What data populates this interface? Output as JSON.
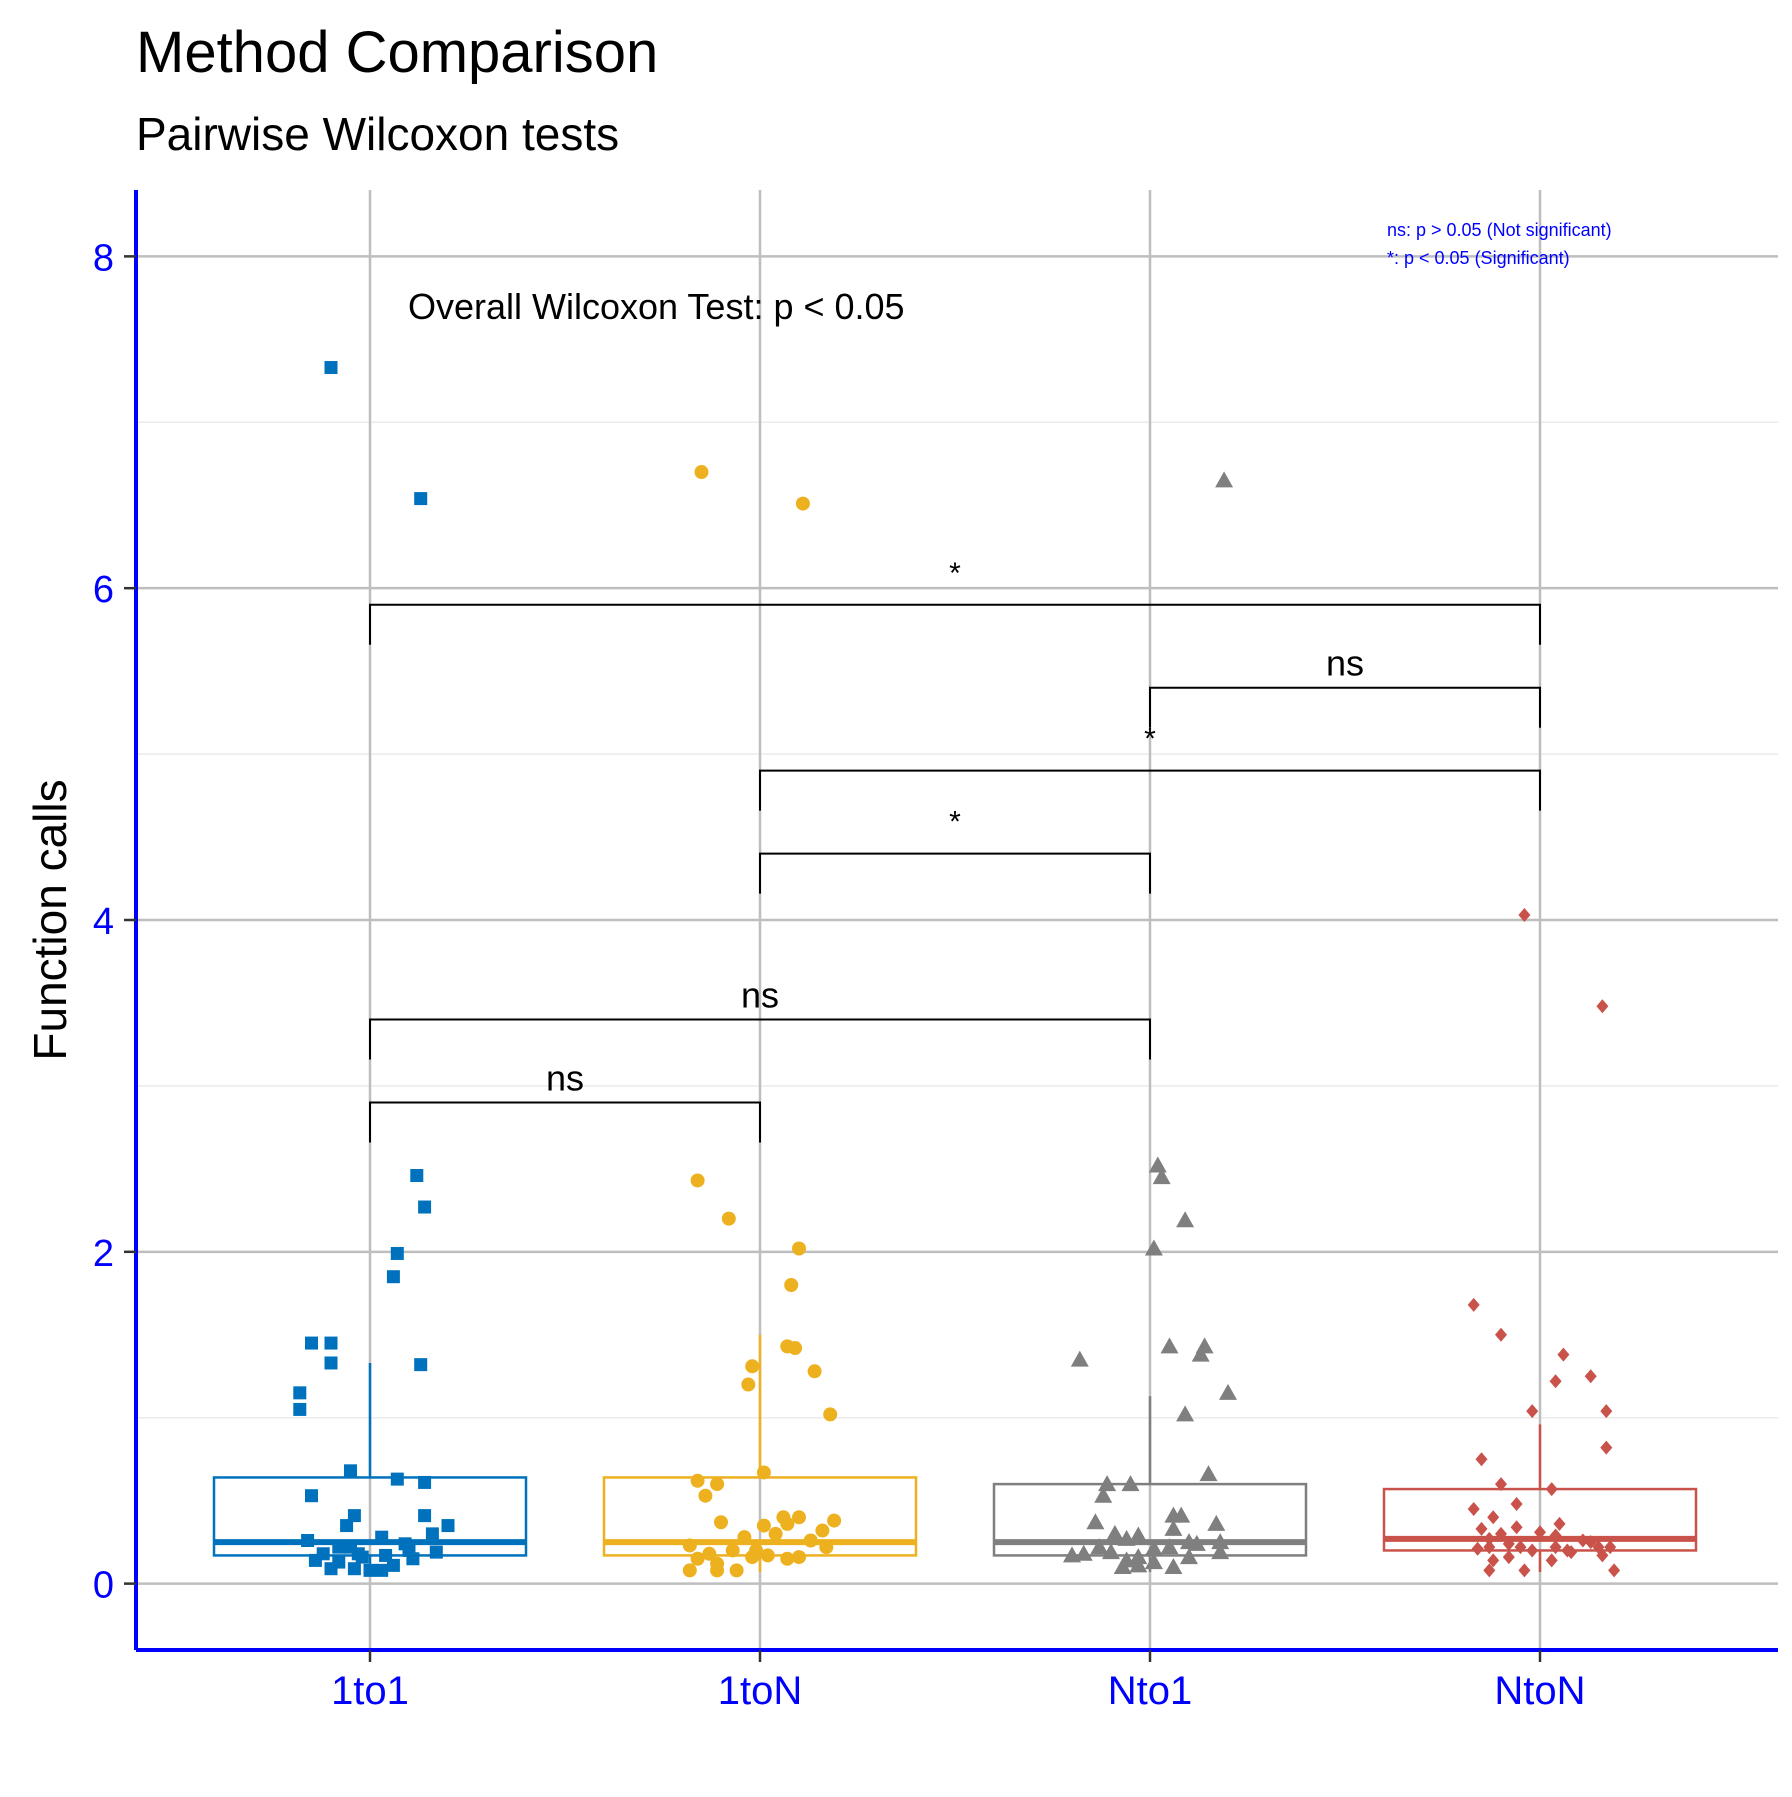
{
  "chart_data": {
    "type": "box",
    "title": "Method Comparison",
    "subtitle": "Pairwise Wilcoxon tests",
    "xlabel": "",
    "ylabel": "Function calls",
    "ylim": [
      -0.4,
      8.4
    ],
    "y_ticks": [
      0,
      2,
      4,
      6,
      8
    ],
    "grid": true,
    "categories": [
      "1to1",
      "1toN",
      "Nto1",
      "NtoN"
    ],
    "boxes": [
      {
        "category": "1to1",
        "color": "#0072BD",
        "marker": "square",
        "q1": 0.17,
        "median": 0.25,
        "q3": 0.64,
        "whisker_low": 0.07,
        "whisker_high": 1.33,
        "points": [
          [
            -0.1,
            7.33
          ],
          [
            0.13,
            6.54
          ],
          [
            0.12,
            2.46
          ],
          [
            0.14,
            2.27
          ],
          [
            0.07,
            1.99
          ],
          [
            0.06,
            1.85
          ],
          [
            0.13,
            1.32
          ],
          [
            -0.15,
            1.45
          ],
          [
            -0.1,
            1.45
          ],
          [
            -0.1,
            1.33
          ],
          [
            -0.18,
            1.15
          ],
          [
            -0.18,
            1.05
          ],
          [
            -0.05,
            0.68
          ],
          [
            0.07,
            0.63
          ],
          [
            0.14,
            0.61
          ],
          [
            -0.15,
            0.53
          ],
          [
            0.14,
            0.41
          ],
          [
            -0.04,
            0.41
          ],
          [
            0.2,
            0.35
          ],
          [
            -0.06,
            0.35
          ],
          [
            0.03,
            0.28
          ],
          [
            0.16,
            0.3
          ],
          [
            -0.16,
            0.26
          ],
          [
            0.09,
            0.24
          ],
          [
            -0.08,
            0.22
          ],
          [
            0.17,
            0.19
          ],
          [
            -0.12,
            0.18
          ],
          [
            0.04,
            0.17
          ],
          [
            -0.02,
            0.16
          ],
          [
            0.11,
            0.15
          ],
          [
            -0.14,
            0.14
          ],
          [
            -0.08,
            0.13
          ],
          [
            0.06,
            0.11
          ],
          [
            -0.1,
            0.09
          ],
          [
            -0.04,
            0.09
          ],
          [
            0.0,
            0.08
          ],
          [
            0.03,
            0.08
          ],
          [
            -0.03,
            0.18
          ],
          [
            0.1,
            0.2
          ],
          [
            -0.05,
            0.22
          ]
        ]
      },
      {
        "category": "1toN",
        "color": "#EDB120",
        "marker": "circle",
        "q1": 0.17,
        "median": 0.25,
        "q3": 0.64,
        "whisker_low": 0.07,
        "whisker_high": 1.5,
        "points": [
          [
            -0.15,
            6.7
          ],
          [
            0.11,
            6.51
          ],
          [
            -0.16,
            2.43
          ],
          [
            -0.08,
            2.2
          ],
          [
            0.1,
            2.02
          ],
          [
            0.08,
            1.8
          ],
          [
            0.07,
            1.43
          ],
          [
            0.09,
            1.42
          ],
          [
            -0.02,
            1.31
          ],
          [
            0.14,
            1.28
          ],
          [
            -0.03,
            1.2
          ],
          [
            0.18,
            1.02
          ],
          [
            0.01,
            0.67
          ],
          [
            -0.16,
            0.62
          ],
          [
            -0.11,
            0.6
          ],
          [
            -0.14,
            0.53
          ],
          [
            0.1,
            0.4
          ],
          [
            0.06,
            0.4
          ],
          [
            0.19,
            0.38
          ],
          [
            -0.1,
            0.37
          ],
          [
            0.01,
            0.35
          ],
          [
            0.07,
            0.36
          ],
          [
            0.16,
            0.32
          ],
          [
            0.04,
            0.3
          ],
          [
            -0.04,
            0.28
          ],
          [
            0.13,
            0.26
          ],
          [
            -0.18,
            0.23
          ],
          [
            0.17,
            0.22
          ],
          [
            -0.07,
            0.2
          ],
          [
            -0.13,
            0.18
          ],
          [
            0.02,
            0.17
          ],
          [
            0.1,
            0.16
          ],
          [
            -0.02,
            0.16
          ],
          [
            0.07,
            0.15
          ],
          [
            -0.16,
            0.15
          ],
          [
            -0.11,
            0.12
          ],
          [
            -0.18,
            0.08
          ],
          [
            -0.11,
            0.08
          ],
          [
            -0.06,
            0.08
          ],
          [
            -0.01,
            0.2
          ]
        ]
      },
      {
        "category": "Nto1",
        "color": "#7F7F7F",
        "marker": "triangle",
        "q1": 0.17,
        "median": 0.25,
        "q3": 0.6,
        "whisker_low": 0.07,
        "whisker_high": 1.13,
        "points": [
          [
            0.19,
            6.65
          ],
          [
            0.02,
            2.52
          ],
          [
            0.03,
            2.45
          ],
          [
            0.09,
            2.19
          ],
          [
            0.01,
            2.02
          ],
          [
            -0.18,
            1.35
          ],
          [
            0.05,
            1.43
          ],
          [
            0.14,
            1.43
          ],
          [
            0.13,
            1.38
          ],
          [
            0.2,
            1.15
          ],
          [
            0.09,
            1.02
          ],
          [
            0.15,
            0.66
          ],
          [
            -0.05,
            0.6
          ],
          [
            -0.11,
            0.6
          ],
          [
            -0.12,
            0.53
          ],
          [
            0.06,
            0.41
          ],
          [
            0.08,
            0.41
          ],
          [
            -0.14,
            0.37
          ],
          [
            0.17,
            0.36
          ],
          [
            0.06,
            0.33
          ],
          [
            -0.09,
            0.3
          ],
          [
            -0.03,
            0.29
          ],
          [
            -0.06,
            0.27
          ],
          [
            0.1,
            0.25
          ],
          [
            0.18,
            0.25
          ],
          [
            -0.13,
            0.22
          ],
          [
            0.01,
            0.21
          ],
          [
            0.18,
            0.19
          ],
          [
            -0.17,
            0.18
          ],
          [
            -0.2,
            0.17
          ],
          [
            -0.03,
            0.16
          ],
          [
            0.1,
            0.16
          ],
          [
            -0.06,
            0.14
          ],
          [
            0.01,
            0.13
          ],
          [
            -0.03,
            0.11
          ],
          [
            0.06,
            0.1
          ],
          [
            -0.07,
            0.1
          ],
          [
            0.05,
            0.22
          ],
          [
            -0.1,
            0.19
          ],
          [
            0.12,
            0.24
          ]
        ]
      },
      {
        "category": "NtoN",
        "color": "#C9524A",
        "marker": "diamond",
        "q1": 0.2,
        "median": 0.27,
        "q3": 0.57,
        "whisker_low": 0.07,
        "whisker_high": 0.96,
        "points": [
          [
            -0.04,
            4.03
          ],
          [
            0.16,
            3.48
          ],
          [
            -0.17,
            1.68
          ],
          [
            -0.1,
            1.5
          ],
          [
            0.06,
            1.38
          ],
          [
            0.13,
            1.25
          ],
          [
            0.04,
            1.22
          ],
          [
            -0.02,
            1.04
          ],
          [
            0.17,
            1.04
          ],
          [
            0.17,
            0.82
          ],
          [
            -0.15,
            0.75
          ],
          [
            -0.1,
            0.6
          ],
          [
            0.03,
            0.57
          ],
          [
            -0.06,
            0.48
          ],
          [
            -0.17,
            0.45
          ],
          [
            -0.12,
            0.4
          ],
          [
            0.05,
            0.36
          ],
          [
            -0.06,
            0.34
          ],
          [
            -0.15,
            0.33
          ],
          [
            0.0,
            0.31
          ],
          [
            -0.1,
            0.3
          ],
          [
            0.04,
            0.29
          ],
          [
            -0.13,
            0.27
          ],
          [
            0.11,
            0.26
          ],
          [
            0.13,
            0.25
          ],
          [
            -0.08,
            0.24
          ],
          [
            -0.05,
            0.22
          ],
          [
            -0.13,
            0.22
          ],
          [
            0.04,
            0.22
          ],
          [
            0.15,
            0.22
          ],
          [
            0.18,
            0.22
          ],
          [
            -0.16,
            0.21
          ],
          [
            -0.02,
            0.2
          ],
          [
            0.08,
            0.19
          ],
          [
            0.16,
            0.17
          ],
          [
            -0.08,
            0.16
          ],
          [
            -0.12,
            0.14
          ],
          [
            0.03,
            0.14
          ],
          [
            -0.13,
            0.08
          ],
          [
            -0.04,
            0.08
          ],
          [
            0.19,
            0.08
          ],
          [
            0.07,
            0.2
          ]
        ]
      }
    ],
    "comparisons": [
      {
        "from": "1to1",
        "to": "1toN",
        "label": "ns",
        "y": 2.9
      },
      {
        "from": "1to1",
        "to": "Nto1",
        "label": "ns",
        "y": 3.4
      },
      {
        "from": "1toN",
        "to": "Nto1",
        "label": "*",
        "y": 4.4
      },
      {
        "from": "1toN",
        "to": "NtoN",
        "label": "*",
        "y": 4.9
      },
      {
        "from": "Nto1",
        "to": "NtoN",
        "label": "ns",
        "y": 5.4
      },
      {
        "from": "1to1",
        "to": "NtoN",
        "label": "*",
        "y": 5.9
      }
    ],
    "annotations": [
      {
        "text": "Overall Wilcoxon Test: p < 0.05",
        "x": "1to1",
        "y": 7.7
      }
    ],
    "legend_notes": [
      "ns: p > 0.05 (Not significant)",
      "*: p < 0.05 (Significant)"
    ],
    "legend_placement": "top-right",
    "axis_color": "#0000FF"
  }
}
